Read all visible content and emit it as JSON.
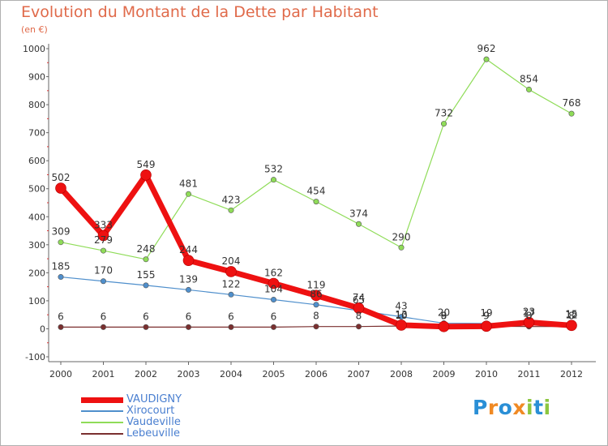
{
  "chart_data": {
    "type": "line",
    "title": "Evolution du Montant de la Dette par Habitant",
    "subtitle": "(en €)",
    "x": [
      "2000",
      "2001",
      "2002",
      "2003",
      "2004",
      "2005",
      "2006",
      "2007",
      "2008",
      "2009",
      "2010",
      "2011",
      "2012"
    ],
    "ylim": [
      -100,
      1000
    ],
    "yticks": [
      "-100",
      "0",
      "100",
      "200",
      "300",
      "400",
      "500",
      "600",
      "700",
      "800",
      "900",
      "1000"
    ],
    "grid": false,
    "legend_position": "bottom-left",
    "series": [
      {
        "name": "VAUDIGNY",
        "color": "#ee1111",
        "values": [
          502,
          333,
          549,
          244,
          204,
          162,
          119,
          74,
          13,
          8,
          9,
          23,
          12
        ]
      },
      {
        "name": "Xirocourt",
        "color": "#4f8fcc",
        "values": [
          185,
          170,
          155,
          139,
          122,
          104,
          86,
          65,
          43,
          20,
          19,
          17,
          15
        ]
      },
      {
        "name": "Vaudeville",
        "color": "#8fdc58",
        "values": [
          309,
          279,
          248,
          481,
          423,
          532,
          454,
          374,
          290,
          732,
          962,
          854,
          768
        ]
      },
      {
        "name": "Lebeuville",
        "color": "#7a2f2f",
        "values": [
          6,
          6,
          6,
          6,
          6,
          6,
          8,
          8,
          10,
          9,
          9,
          8,
          8
        ]
      }
    ]
  },
  "brand": {
    "letters": [
      "P",
      "r",
      "o",
      "x",
      "i",
      "t",
      "i"
    ],
    "colors": [
      "#2a8fd6",
      "#f08a24",
      "#2a8fd6",
      "#f08a24",
      "#8cc63f",
      "#2a8fd6",
      "#8cc63f"
    ]
  }
}
